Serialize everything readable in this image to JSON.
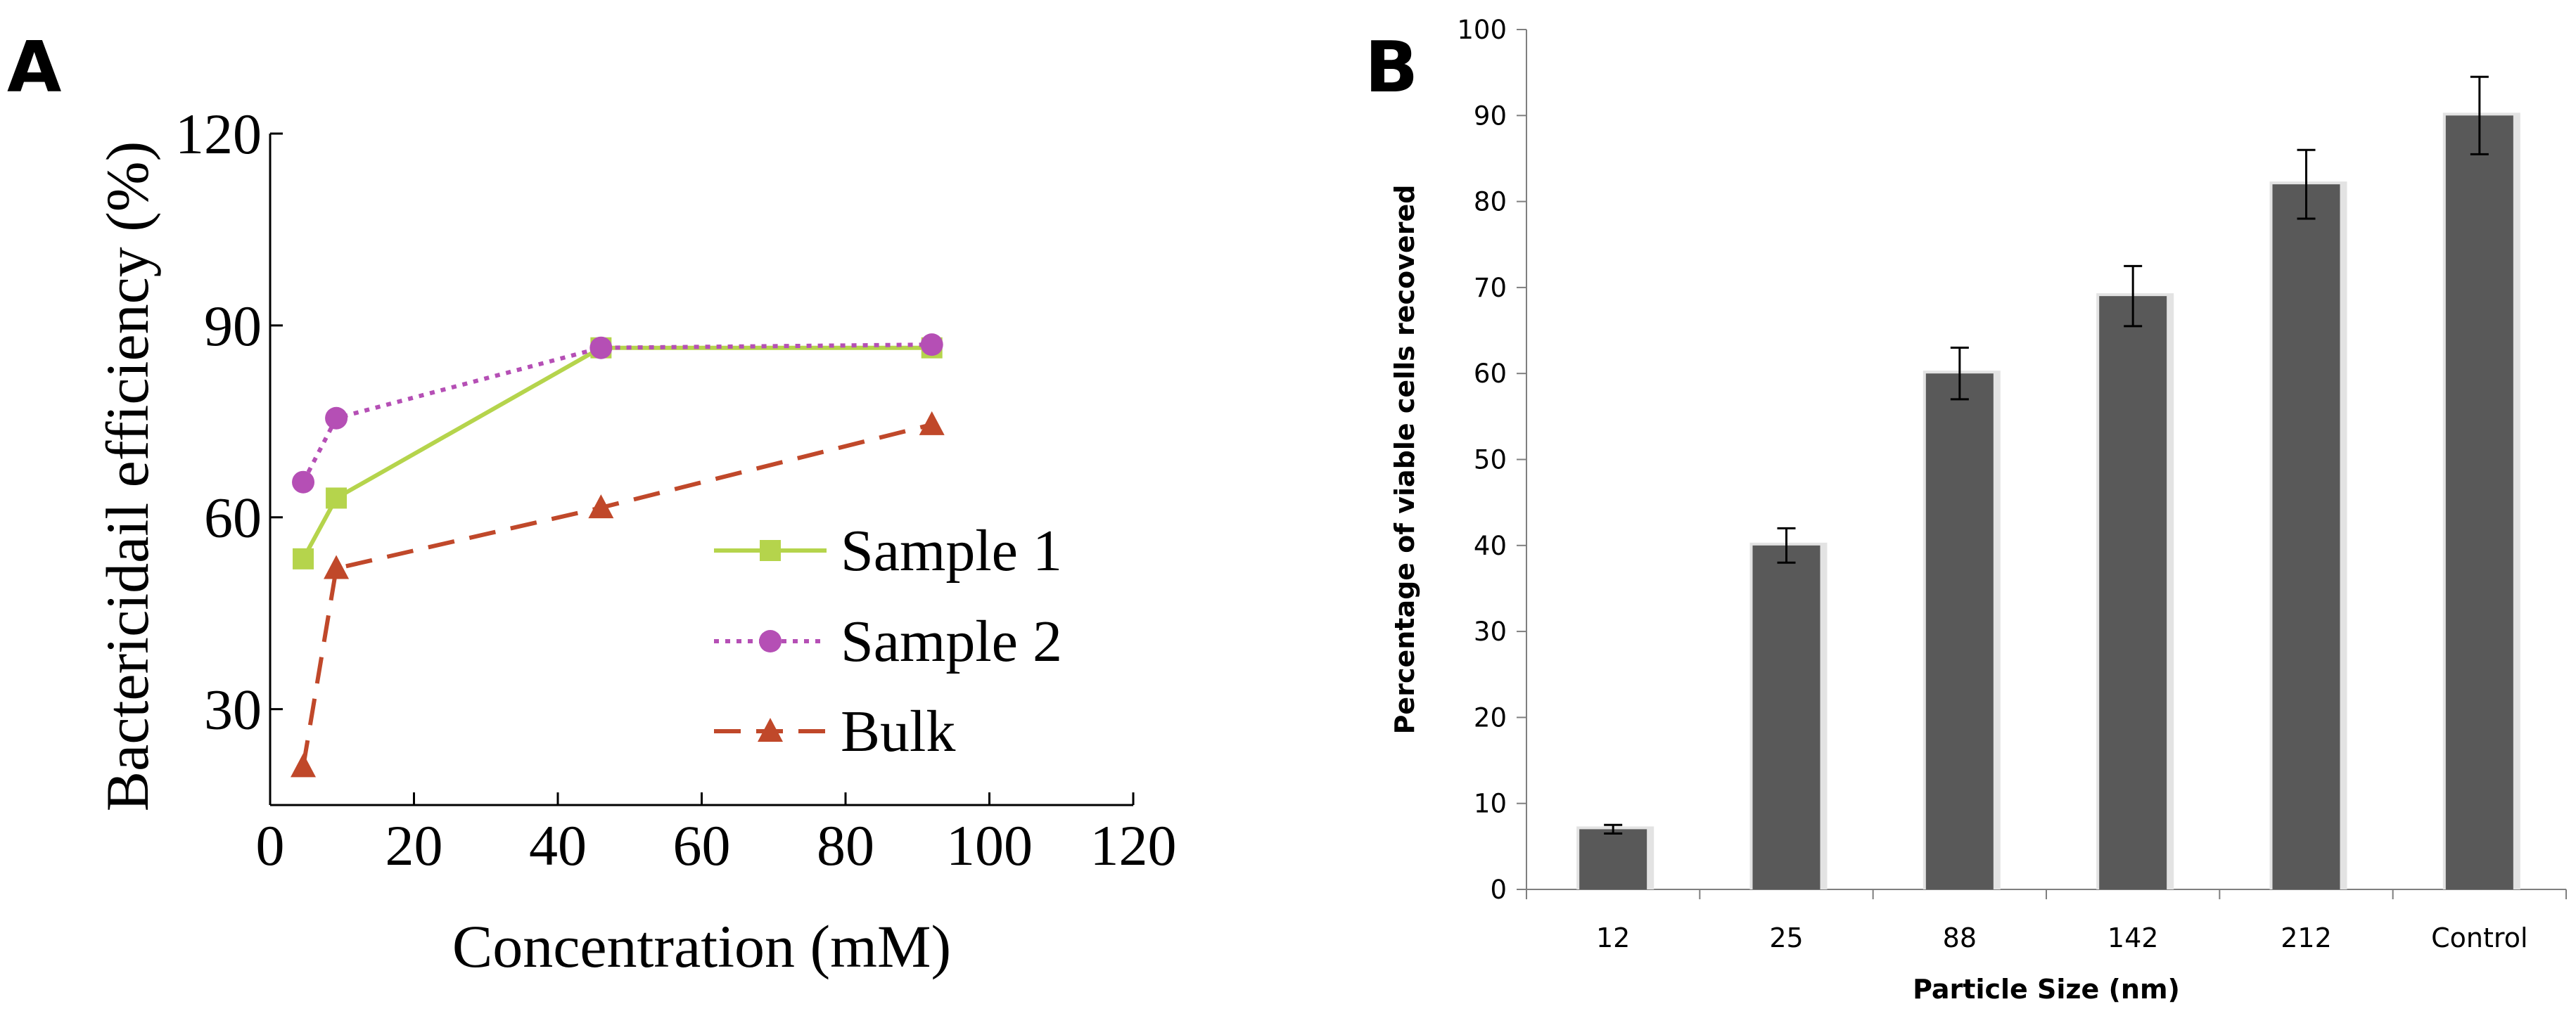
{
  "panel_a_label": "A",
  "panel_b_label": "B",
  "colors": {
    "sample1": "#b5d44c",
    "sample2": "#b54fb5",
    "bulk": "#c0482a",
    "bar": "#595959",
    "axis": "#000000"
  },
  "chart_data": [
    {
      "type": "line",
      "panel": "A",
      "title": "",
      "xlabel": "Concentration (mM)",
      "ylabel": "Bactericidail efficiency (%)",
      "xlim": [
        0,
        120
      ],
      "ylim": [
        15,
        120
      ],
      "xticks": [
        0,
        20,
        40,
        60,
        80,
        100,
        120
      ],
      "yticks": [
        30,
        60,
        90,
        120
      ],
      "grid": false,
      "legend_position": "lower-right",
      "series": [
        {
          "name": "Sample 1",
          "marker": "square",
          "dash": "solid",
          "x": [
            4.6,
            9.2,
            46,
            92
          ],
          "y": [
            53.5,
            63,
            86.5,
            86.5
          ]
        },
        {
          "name": "Sample 2",
          "marker": "circle",
          "dash": "dotted",
          "x": [
            4.6,
            9.2,
            46,
            92
          ],
          "y": [
            65.5,
            75.5,
            86.5,
            87
          ]
        },
        {
          "name": "Bulk",
          "marker": "triangle",
          "dash": "dashed",
          "x": [
            4.6,
            9.2,
            46,
            92
          ],
          "y": [
            21,
            52,
            61.5,
            74.5
          ]
        }
      ]
    },
    {
      "type": "bar",
      "panel": "B",
      "title": "",
      "xlabel": "Particle Size (nm)",
      "ylabel": "Percentage of viable cells recovered",
      "categories": [
        "12",
        "25",
        "88",
        "142",
        "212",
        "Control"
      ],
      "values": [
        7,
        40,
        60,
        69,
        82,
        90
      ],
      "errors": [
        0.5,
        2,
        3,
        3.5,
        4,
        4.5
      ],
      "ylim": [
        0,
        100
      ],
      "yticks": [
        0,
        10,
        20,
        30,
        40,
        50,
        60,
        70,
        80,
        90,
        100
      ],
      "grid": false
    }
  ]
}
